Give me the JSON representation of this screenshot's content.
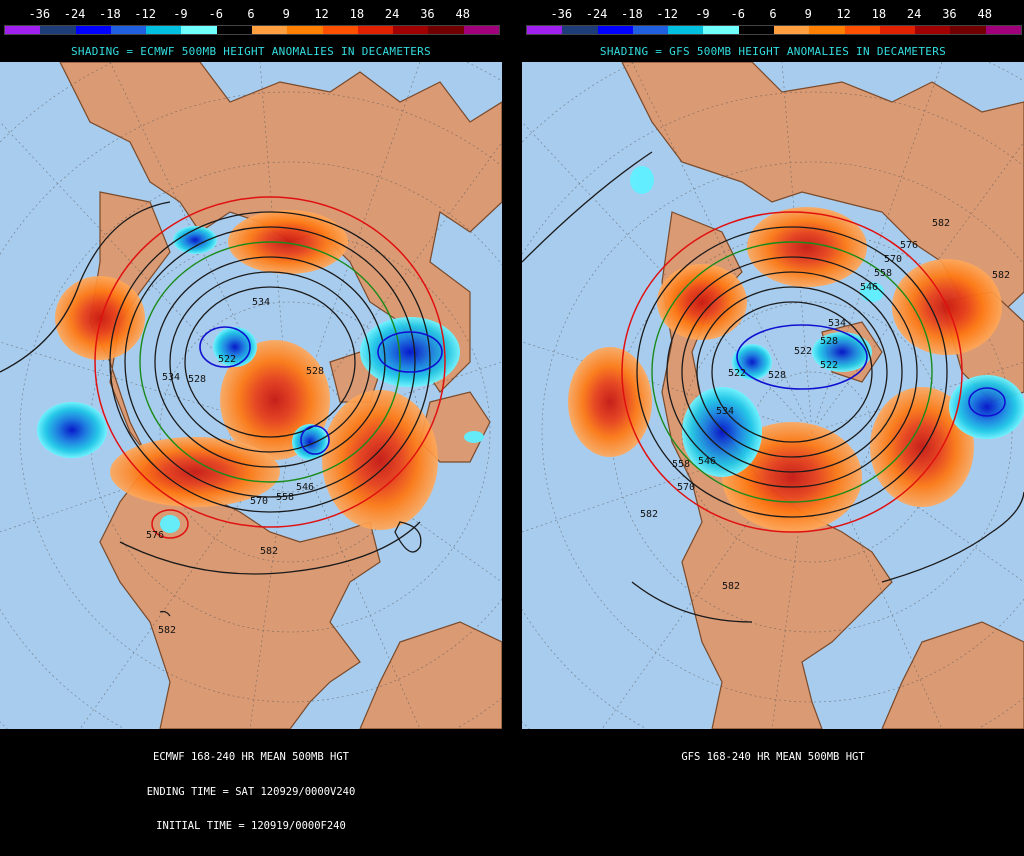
{
  "legend": {
    "ticks": [
      "-36",
      "-24",
      "-18",
      "-12",
      "-9",
      "-6",
      "6",
      "9",
      "12",
      "18",
      "24",
      "36",
      "48"
    ],
    "colors": [
      "#a020f0",
      "#1e3c78",
      "#0000ff",
      "#2060e0",
      "#00c0e0",
      "#70ffff",
      "#000000",
      "#ffa040",
      "#ff8000",
      "#ff5000",
      "#e02000",
      "#a00000",
      "#700000",
      "#a0007a"
    ]
  },
  "left": {
    "shading_title": "SHADING = ECMWF 500MB HEIGHT ANOMALIES IN DECAMETERS",
    "caption_lines": [
      "ECMWF 168-240 HR MEAN 500MB HGT",
      "ENDING TIME = SAT 120929/0000V240",
      "INITIAL TIME = 120919/0000F240"
    ],
    "contour_labels": [
      "534",
      "522",
      "534",
      "528",
      "528",
      "546",
      "558",
      "570",
      "582",
      "576",
      "582"
    ]
  },
  "right": {
    "shading_title": "SHADING = GFS 500MB HEIGHT ANOMALIES IN DECAMETERS",
    "caption_lines": [
      "GFS 168-240 HR MEAN 500MB HGT"
    ],
    "contour_labels": [
      "582",
      "576",
      "570",
      "558",
      "546",
      "534",
      "528",
      "522",
      "522",
      "528",
      "522",
      "534",
      "546",
      "558",
      "570",
      "582",
      "582",
      "582"
    ]
  },
  "map_colors": {
    "ocean": "#a8ccee",
    "land": "#d99a74",
    "border": "#7a4a2a",
    "contour": "#1a1a1a",
    "c552": "#1a8a1a",
    "c576": "#e01010",
    "c528": "#1010d0"
  }
}
